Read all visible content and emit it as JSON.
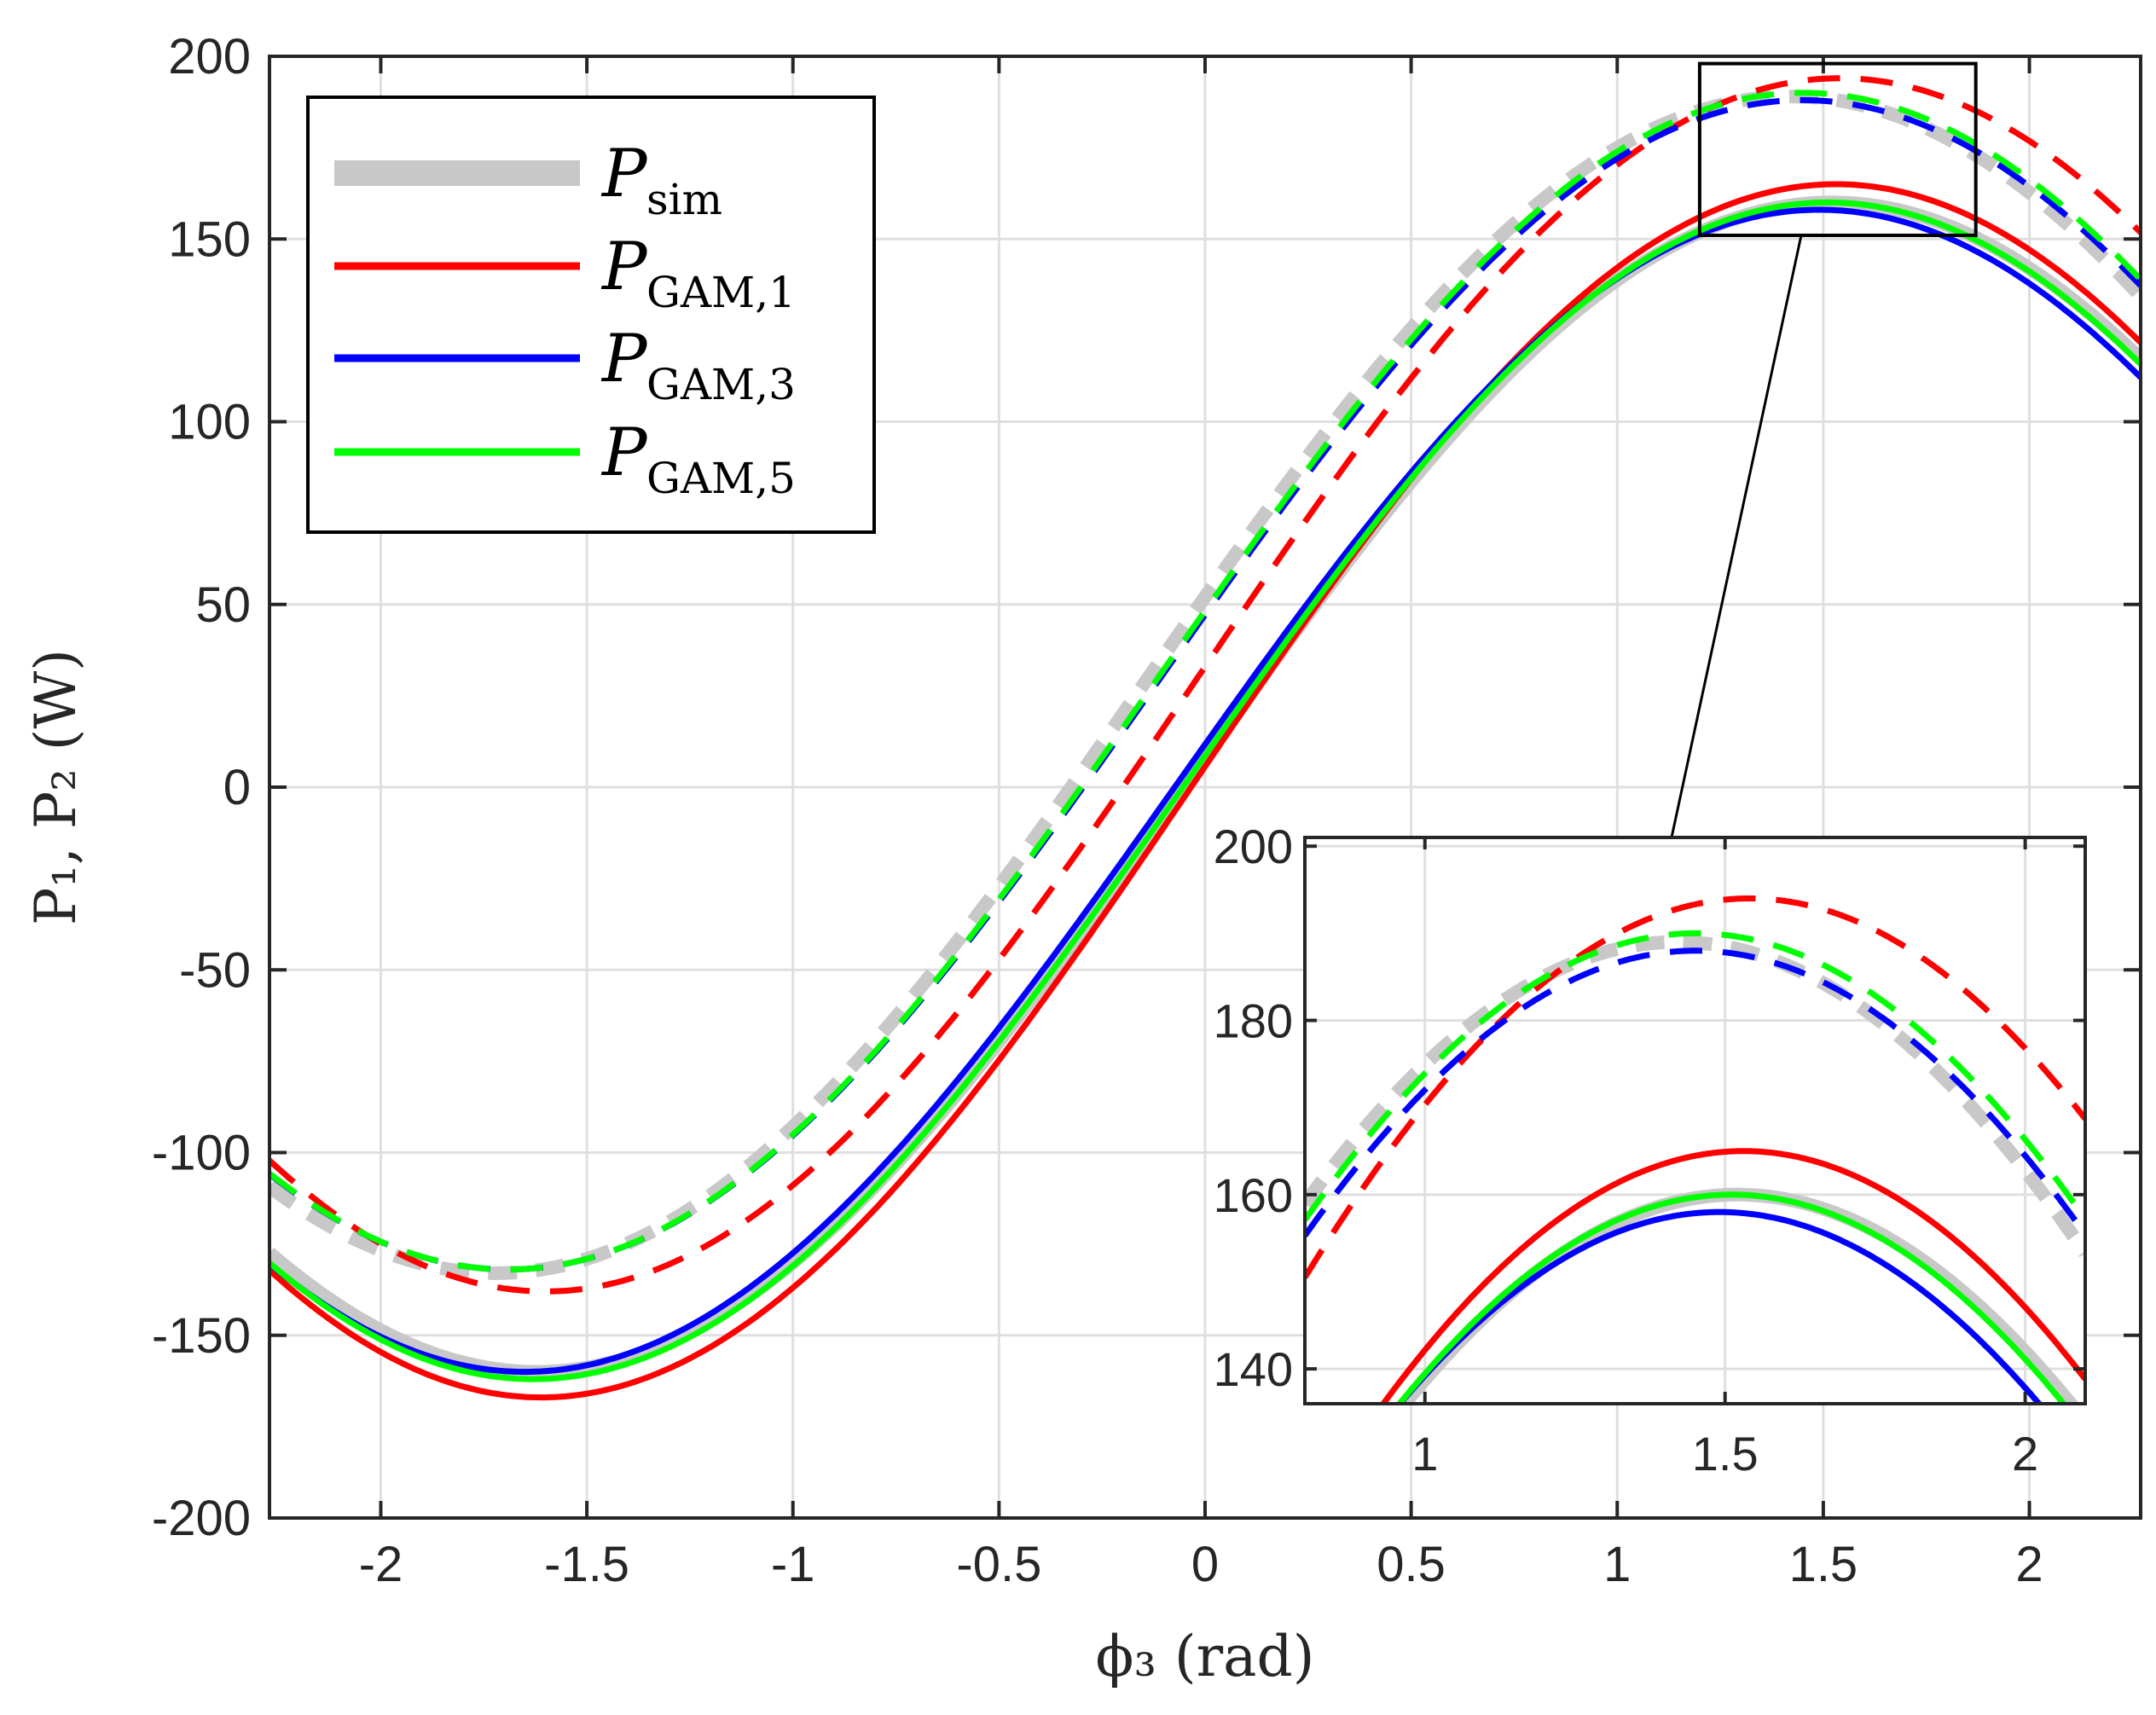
{
  "chart_data": {
    "type": "line",
    "xlabel": "ϕ₃ (rad)",
    "ylabel": "P₁, P₂ (W)",
    "xlim": [
      -2.27,
      2.27
    ],
    "ylim": [
      -200,
      200
    ],
    "grid": true,
    "x_ticks": [
      -2,
      -1.5,
      -1,
      -0.5,
      0,
      0.5,
      1,
      1.5,
      2
    ],
    "x_tick_labels": [
      "-2",
      "-1.5",
      "-1",
      "-0.5",
      "0",
      "0.5",
      "1",
      "1.5",
      "2"
    ],
    "y_ticks": [
      -200,
      -150,
      -100,
      -50,
      0,
      50,
      100,
      150,
      200
    ],
    "y_tick_labels": [
      "-200",
      "-150",
      "-100",
      "-50",
      "0",
      "50",
      "100",
      "150",
      "200"
    ],
    "legend": {
      "placement": "top-left",
      "entries": [
        {
          "main": "P",
          "sub": "sim",
          "color": "#c8c8c8",
          "width": "thick"
        },
        {
          "main": "P",
          "sub": "GAM,1",
          "color": "#ff0000",
          "width": "normal"
        },
        {
          "main": "P",
          "sub": "GAM,3",
          "color": "#0000ff",
          "width": "normal"
        },
        {
          "main": "P",
          "sub": "GAM,5",
          "color": "#00ff00",
          "width": "normal"
        }
      ]
    },
    "curve_model": "P = amplitude * sin(phi - center) + offset, sampled over xlim",
    "series": [
      {
        "name": "P_sim (P1)",
        "color": "#c8c8c8",
        "dash": "solid",
        "amplitude": 160,
        "center": -0.05,
        "offset": 0
      },
      {
        "name": "P_sim (P2)",
        "color": "#c8c8c8",
        "dash": "dashed",
        "amplitude": 161,
        "center": -0.15,
        "offset": 28
      },
      {
        "name": "P_GAM,1 (P1)",
        "color": "#ff0000",
        "dash": "solid",
        "amplitude": 166,
        "center": -0.04,
        "offset": -1
      },
      {
        "name": "P_GAM,1 (P2)",
        "color": "#ff0000",
        "dash": "dashed",
        "amplitude": 166,
        "center": -0.03,
        "offset": 28
      },
      {
        "name": "P_GAM,3 (P1)",
        "color": "#0000ff",
        "dash": "solid",
        "amplitude": 159,
        "center": -0.08,
        "offset": -1
      },
      {
        "name": "P_GAM,3 (P2)",
        "color": "#0000ff",
        "dash": "dashed",
        "amplitude": 160,
        "center": -0.12,
        "offset": 28
      },
      {
        "name": "P_GAM,5 (P1)",
        "color": "#00ff00",
        "dash": "solid",
        "amplitude": 161,
        "center": -0.06,
        "offset": -1
      },
      {
        "name": "P_GAM,5 (P2)",
        "color": "#00ff00",
        "dash": "dashed",
        "amplitude": 161,
        "center": -0.12,
        "offset": 29
      }
    ],
    "inset": {
      "xlim": [
        0.8,
        2.1
      ],
      "ylim": [
        136,
        201
      ],
      "x_ticks": [
        1,
        1.5,
        2
      ],
      "x_tick_labels": [
        "1",
        "1.5",
        "2"
      ],
      "y_ticks": [
        140,
        160,
        180,
        200
      ],
      "y_tick_labels": [
        "140",
        "160",
        "180",
        "200"
      ],
      "zoom_region": {
        "x": [
          1.2,
          1.87
        ],
        "y": [
          151,
          198
        ]
      }
    }
  }
}
